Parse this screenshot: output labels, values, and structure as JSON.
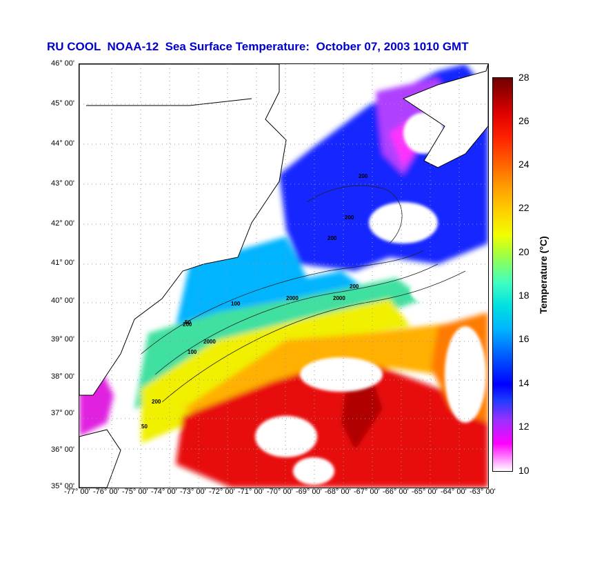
{
  "title": "RU COOL  NOAA-12  Sea Surface Temperature:  October 07, 2003 1010 GMT",
  "latitude_labels": [
    "46° 00'",
    "45° 00'",
    "44° 00'",
    "43° 00'",
    "42° 00'",
    "41° 00'",
    "40° 00'",
    "39° 00'",
    "38° 00'",
    "37° 00'",
    "36° 00'",
    "35° 00'"
  ],
  "longitude_labels": [
    "-77° 00'",
    "-76° 00'",
    "-75° 00'",
    "-74° 00'",
    "-73° 00'",
    "-72° 00'",
    "-71° 00'",
    "-70° 00'",
    "-69° 00'",
    "-68° 00'",
    "-67° 00'",
    "-66° 00'",
    "-65° 00'",
    "-64° 00'",
    "-63° 00'"
  ],
  "colorbar": {
    "title": "Temperature (°C)",
    "ticks": [
      "28",
      "26",
      "24",
      "22",
      "20",
      "18",
      "16",
      "14",
      "12",
      "10"
    ],
    "min": 10,
    "max": 28
  },
  "contour_labels": [
    "200",
    "200",
    "200",
    "200",
    "2000",
    "2000",
    "50",
    "100",
    "100",
    "200",
    "200",
    "50",
    "2000"
  ],
  "colors": {
    "title": "#0000cc",
    "warm": "#e00000",
    "cold": "#0000ff",
    "mid": "#f0ff00",
    "cloud": "#ffffff"
  }
}
